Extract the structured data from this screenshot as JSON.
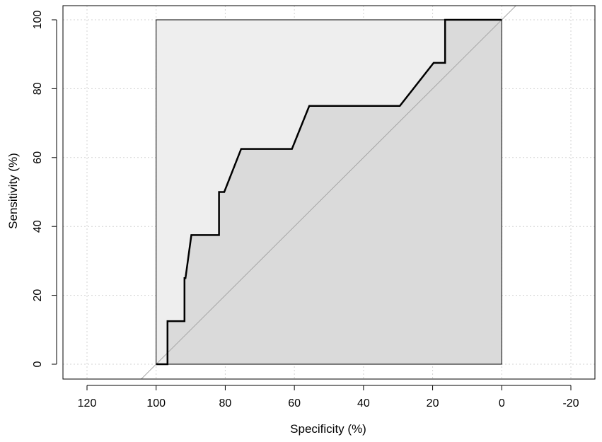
{
  "chart_data": {
    "type": "line",
    "xlabel": "Specificity (%)",
    "ylabel": "Sensitivity (%)",
    "xlim": [
      120,
      -20
    ],
    "ylim": [
      0,
      100
    ],
    "x_reversed": true,
    "x_ticks": [
      120,
      100,
      80,
      60,
      40,
      20,
      0,
      -20
    ],
    "x_tick_labels": [
      "120",
      "100",
      "80",
      "60",
      "40",
      "20",
      "0",
      "-20"
    ],
    "y_ticks": [
      0,
      20,
      40,
      60,
      80,
      100
    ],
    "y_tick_labels": [
      "0",
      "20",
      "40",
      "60",
      "80",
      "100"
    ],
    "grid": true,
    "diagonal_reference_line": true,
    "shaded_region": {
      "x": [
        100,
        0
      ],
      "y": [
        0,
        100
      ]
    },
    "series": [
      {
        "x": [
          100,
          96.7,
          96.7,
          91.8,
          91.8,
          91.5,
          89.8,
          81.8,
          81.8,
          80.3,
          75.4,
          60.7,
          55.7,
          29.5,
          19.7,
          16.4,
          16.4,
          0
        ],
        "y": [
          0,
          0,
          12.5,
          12.5,
          25,
          25,
          37.5,
          37.5,
          50,
          50,
          62.5,
          62.5,
          75,
          75,
          87.5,
          87.5,
          100,
          100
        ]
      }
    ],
    "colors": {
      "outer_shade": "#eeeeee",
      "auc_shade": "#dadada",
      "curve": "#000000",
      "diagonal": "#a6a6a6",
      "grid": "#d3d3d3"
    }
  }
}
